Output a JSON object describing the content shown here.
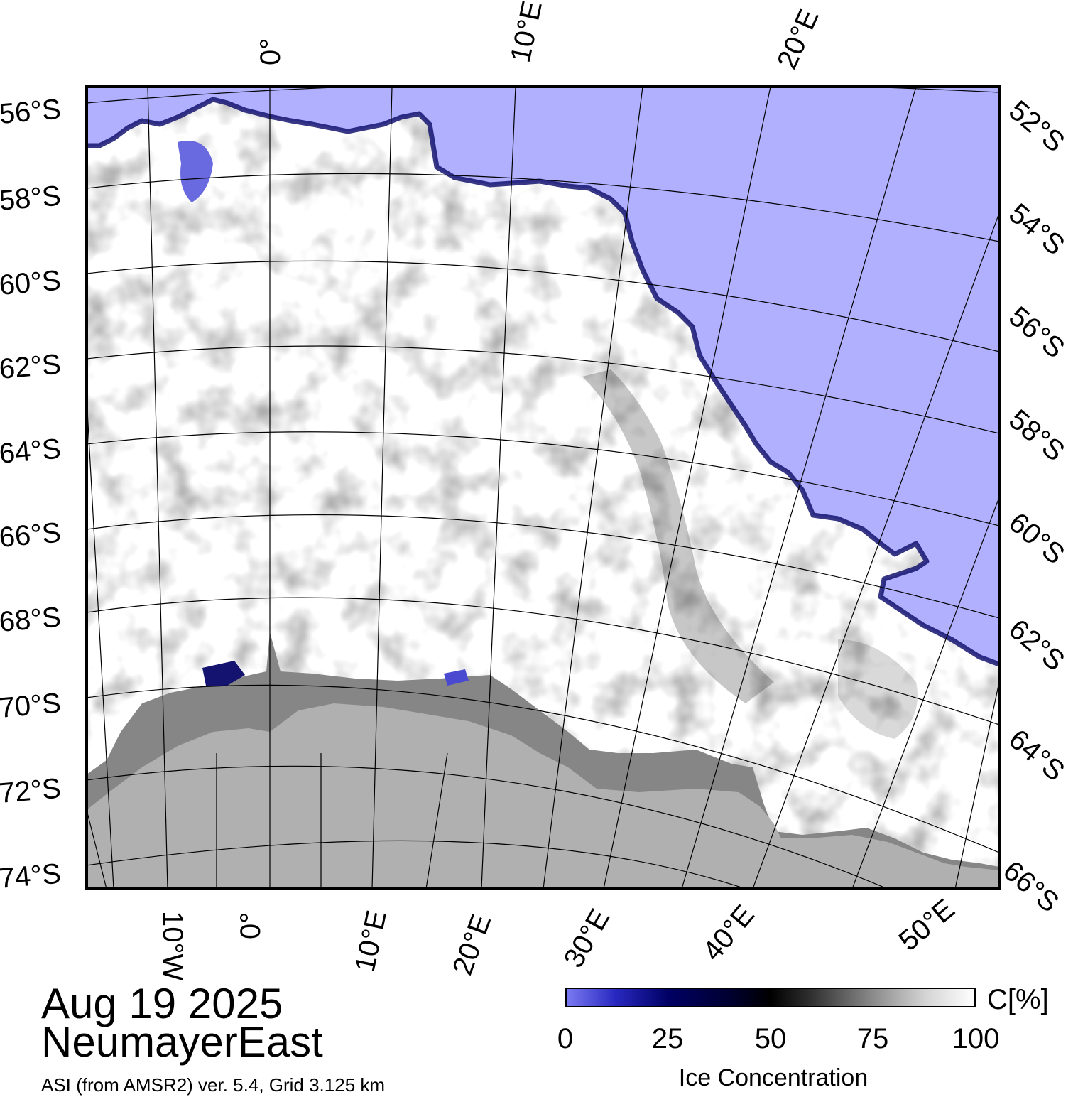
{
  "map": {
    "left_lat_labels": [
      "56°S",
      "58°S",
      "60°S",
      "62°S",
      "64°S",
      "66°S",
      "68°S",
      "70°S",
      "72°S",
      "74°S"
    ],
    "right_lat_labels": [
      "52°S",
      "54°S",
      "56°S",
      "58°S",
      "60°S",
      "62°S",
      "64°S",
      "66°S"
    ],
    "top_lon_labels": [
      "0°",
      "10°E",
      "20°E"
    ],
    "bottom_lon_labels": [
      "10°W",
      "0°",
      "10°E",
      "20°E",
      "30°E",
      "40°E",
      "50°E"
    ],
    "colors": {
      "open_water": "#b0b0ff",
      "land": "#b0b0b0",
      "ice_shelf": "#868686",
      "sea_ice": "#ffffff",
      "low_concentration_edge": "#1a1a8a"
    }
  },
  "caption": {
    "date": "Aug 19 2025",
    "region": "NeumayerEast",
    "source": "ASI (from AMSR2) ver. 5.4,  Grid 3.125 km"
  },
  "colorbar": {
    "unit": "C[%]",
    "ticks": [
      "0",
      "25",
      "50",
      "75",
      "100"
    ],
    "title": "Ice Concentration",
    "range": [
      0,
      100
    ],
    "colors": [
      "#7a7af2",
      "#000064",
      "#000000",
      "#8a8a8a",
      "#ffffff"
    ]
  }
}
